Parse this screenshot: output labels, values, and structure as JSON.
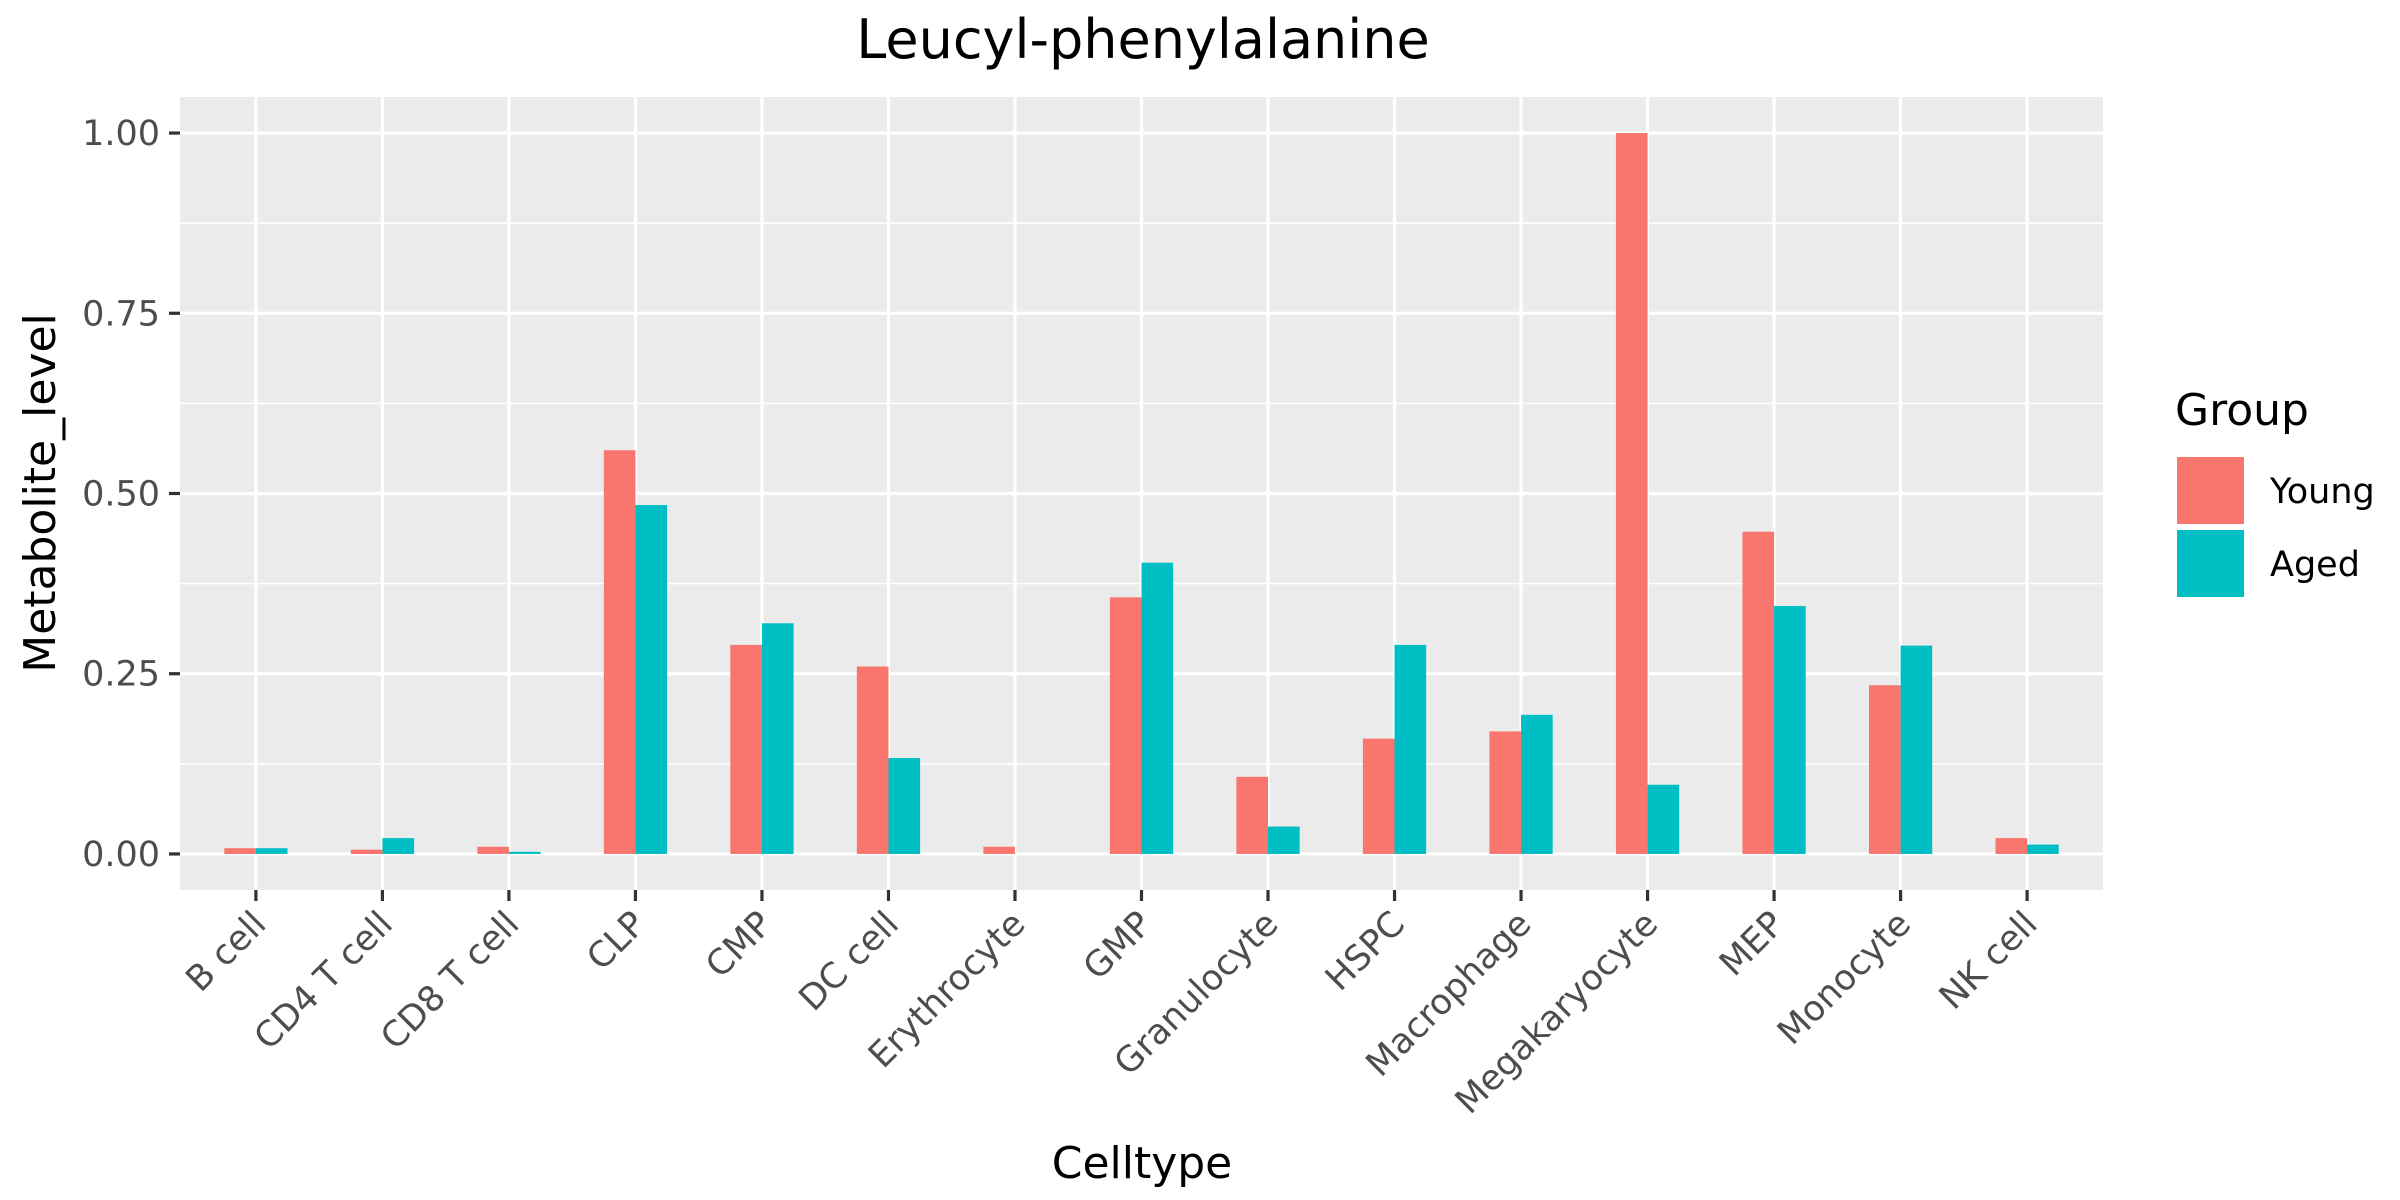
{
  "chart_data": {
    "type": "bar",
    "title": "Leucyl-phenylalanine",
    "xlabel": "Celltype",
    "ylabel": "Metabolite_level",
    "ylim": [
      -0.05,
      1.05
    ],
    "yticks": [
      0.0,
      0.25,
      0.5,
      0.75,
      1.0
    ],
    "ytick_labels": [
      "0.00",
      "0.25",
      "0.50",
      "0.75",
      "1.00"
    ],
    "grid": true,
    "legend_position": "right",
    "legend_title": "Group",
    "categories": [
      "B cell",
      "CD4 T cell",
      "CD8 T cell",
      "CLP",
      "CMP",
      "DC cell",
      "Erythrocyte",
      "GMP",
      "Granulocyte",
      "HSPC",
      "Macrophage",
      "Megakaryocyte",
      "MEP",
      "Monocyte",
      "NK cell"
    ],
    "series": [
      {
        "name": "Young",
        "color": "#F8766D",
        "values": [
          0.008,
          0.006,
          0.01,
          0.56,
          0.29,
          0.26,
          0.01,
          0.356,
          0.107,
          0.16,
          0.17,
          1.0,
          0.447,
          0.234,
          0.022
        ]
      },
      {
        "name": "Aged",
        "color": "#00BFC4",
        "values": [
          0.008,
          0.022,
          0.003,
          0.484,
          0.32,
          0.133,
          0.0,
          0.404,
          0.038,
          0.29,
          0.193,
          0.096,
          0.344,
          0.289,
          0.013
        ]
      }
    ]
  }
}
